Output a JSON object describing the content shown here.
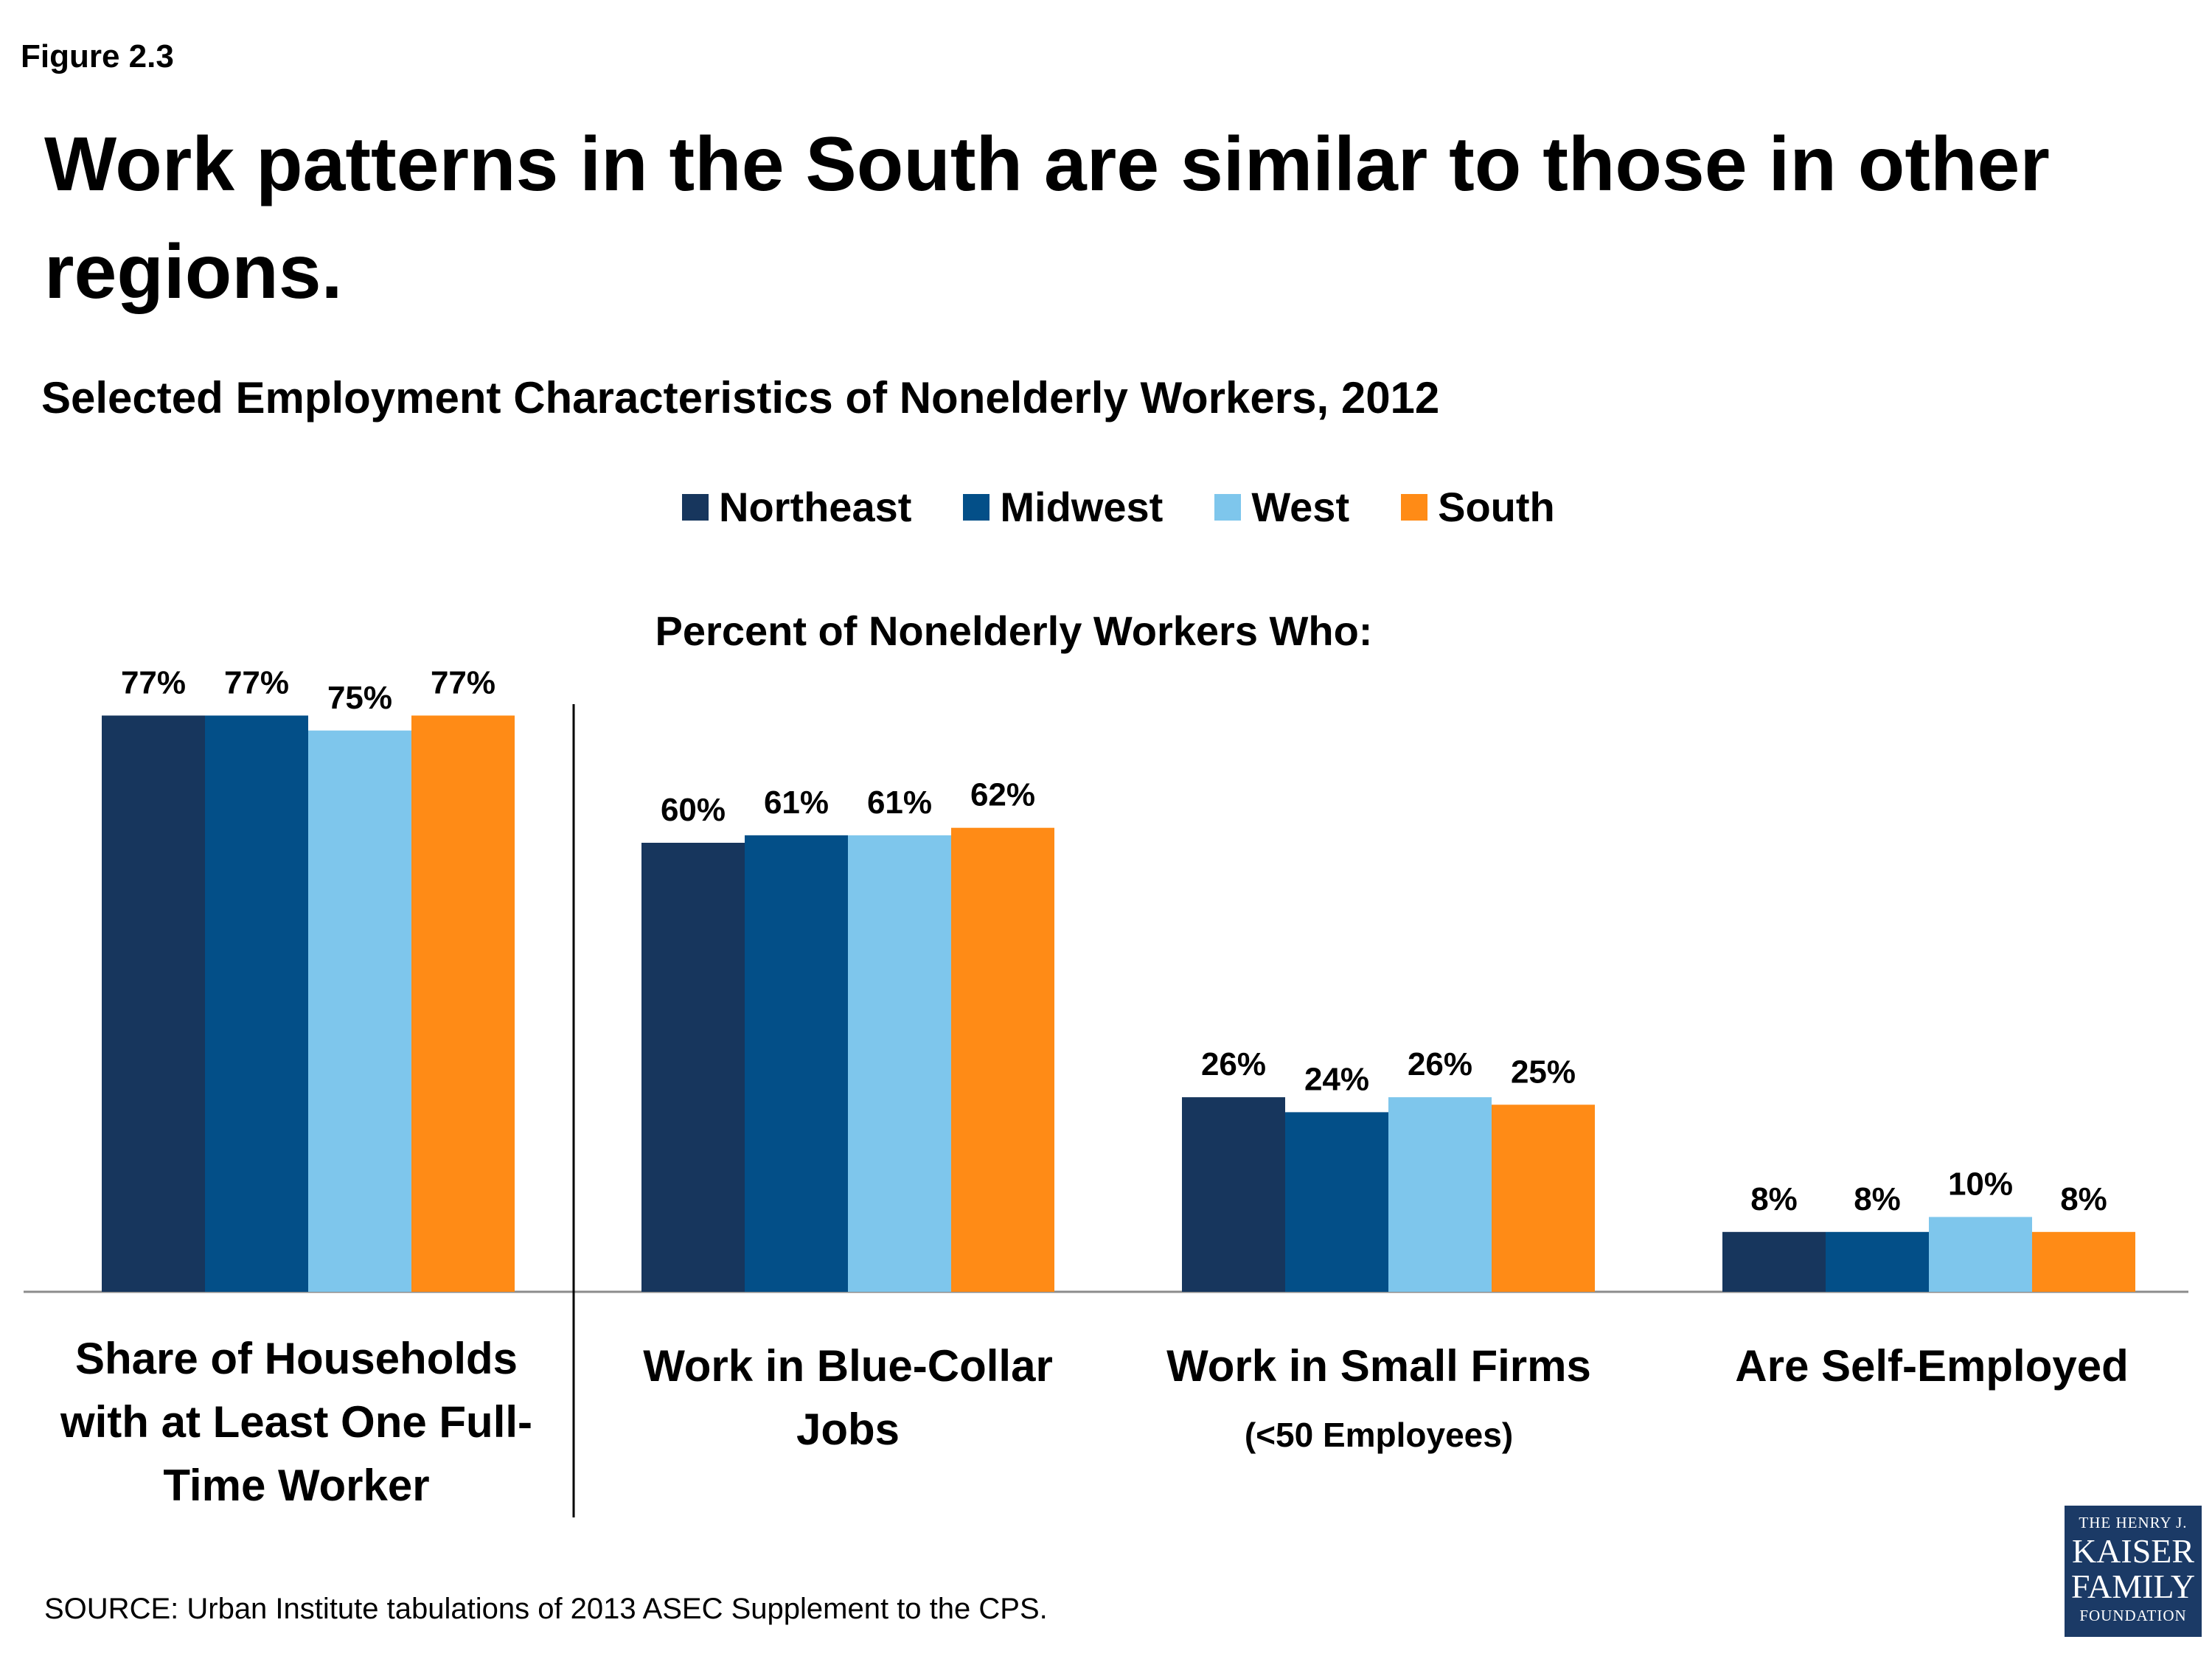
{
  "header": {
    "figure_label": "Figure 2.3",
    "title": "Work patterns in the South are similar to those in other regions."
  },
  "chart_data": {
    "type": "bar",
    "title": "Selected Employment Characteristics of Nonelderly Workers, 2012",
    "annotation": "Percent of  Nonelderly Workers Who:",
    "categories": [
      {
        "label": "Share of Households with at Least One Full-Time Worker",
        "sub": ""
      },
      {
        "label": "Work in Blue-Collar Jobs",
        "sub": ""
      },
      {
        "label": "Work in Small Firms",
        "sub": "(<50 Employees)"
      },
      {
        "label": "Are Self-Employed",
        "sub": ""
      }
    ],
    "series": [
      {
        "name": "Northeast",
        "color": "#17365d",
        "values": [
          77,
          60,
          26,
          8
        ],
        "labels": [
          "77%",
          "60%",
          "26%",
          "8%"
        ]
      },
      {
        "name": "Midwest",
        "color": "#034f88",
        "values": [
          77,
          61,
          24,
          8
        ],
        "labels": [
          "77%",
          "61%",
          "24%",
          "8%"
        ]
      },
      {
        "name": "West",
        "color": "#7ec6ec",
        "values": [
          75,
          61,
          26,
          10
        ],
        "labels": [
          "75%",
          "61%",
          "26%",
          "10%"
        ]
      },
      {
        "name": "South",
        "color": "#ff8b16",
        "values": [
          77,
          62,
          25,
          8
        ],
        "labels": [
          "77%",
          "62%",
          "25%",
          "8%"
        ]
      }
    ],
    "ylim": [
      0,
      100
    ],
    "grid": false,
    "legend_position": "top-center"
  },
  "footer": {
    "source": "SOURCE:  Urban Institute tabulations of 2013 ASEC Supplement to the CPS.",
    "logo": {
      "line1": "THE HENRY J.",
      "line2": "KAISER",
      "line3": "FAMILY",
      "line4": "FOUNDATION"
    }
  }
}
